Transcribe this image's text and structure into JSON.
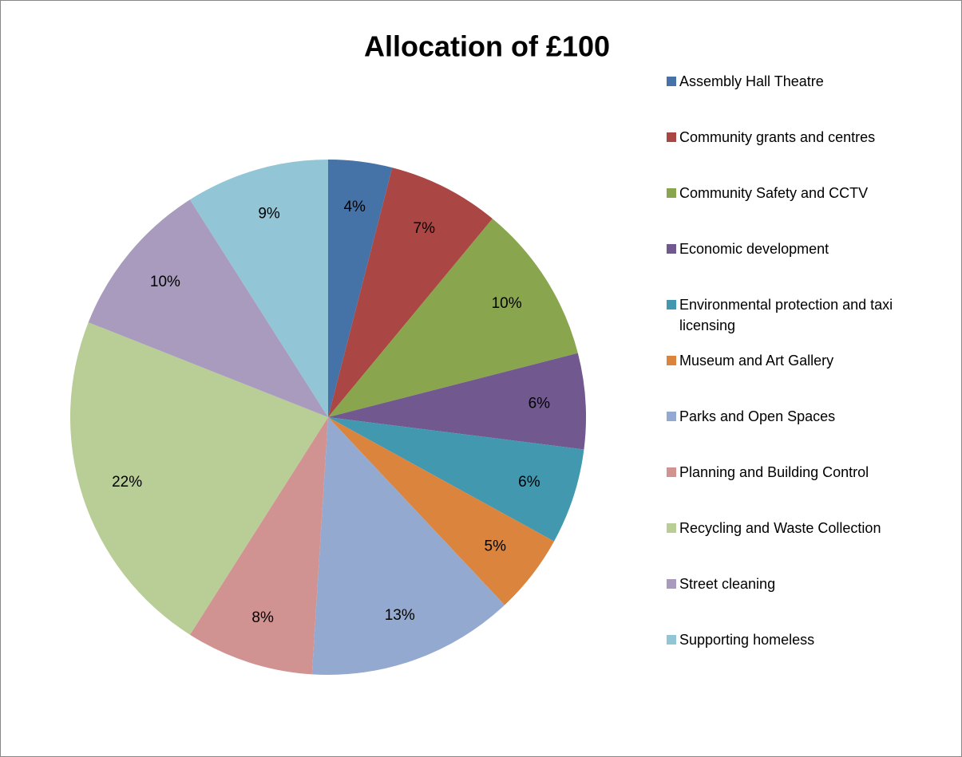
{
  "chart_data": {
    "type": "pie",
    "title": "Allocation of £100",
    "categories": [
      "Assembly Hall Theatre",
      "Community grants and centres",
      "Community Safety and CCTV",
      "Economic development",
      "Environmental protection and taxi licensing",
      "Museum and Art Gallery",
      "Parks and Open Spaces",
      "Planning and Building Control",
      "Recycling and Waste Collection",
      "Street cleaning",
      "Supporting homeless"
    ],
    "values": [
      4,
      7,
      10,
      6,
      6,
      5,
      13,
      8,
      22,
      10,
      9
    ],
    "value_labels": [
      "4%",
      "7%",
      "10%",
      "6%",
      "6%",
      "5%",
      "13%",
      "8%",
      "22%",
      "10%",
      "9%"
    ],
    "colors": [
      "#4572a7",
      "#aa4643",
      "#89a54e",
      "#71588f",
      "#4198af",
      "#db843d",
      "#93a9cf",
      "#d19392",
      "#b9cd96",
      "#a99bbd",
      "#92c5d6"
    ],
    "legend": "right"
  }
}
